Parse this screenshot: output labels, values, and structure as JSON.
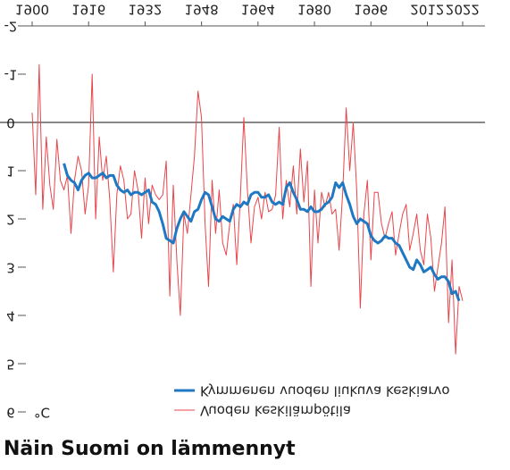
{
  "chart_data": {
    "type": "line",
    "title": "Näin Suomi on lämmennyt",
    "y_label": "°C",
    "x": [
      1900,
      1901,
      1902,
      1903,
      1904,
      1905,
      1906,
      1907,
      1908,
      1909,
      1910,
      1911,
      1912,
      1913,
      1914,
      1915,
      1916,
      1917,
      1918,
      1919,
      1920,
      1921,
      1922,
      1923,
      1924,
      1925,
      1926,
      1927,
      1928,
      1929,
      1930,
      1931,
      1932,
      1933,
      1934,
      1935,
      1936,
      1937,
      1938,
      1939,
      1940,
      1941,
      1942,
      1943,
      1944,
      1945,
      1946,
      1947,
      1948,
      1949,
      1950,
      1951,
      1952,
      1953,
      1954,
      1955,
      1956,
      1957,
      1958,
      1959,
      1960,
      1961,
      1962,
      1963,
      1964,
      1965,
      1966,
      1967,
      1968,
      1969,
      1970,
      1971,
      1972,
      1973,
      1974,
      1975,
      1976,
      1977,
      1978,
      1979,
      1980,
      1981,
      1982,
      1983,
      1984,
      1985,
      1986,
      1987,
      1988,
      1989,
      1990,
      1991,
      1992,
      1993,
      1994,
      1995,
      1996,
      1997,
      1998,
      1999,
      2000,
      2001,
      2002,
      2003,
      2004,
      2005,
      2006,
      2007,
      2008,
      2009,
      2010,
      2011,
      2012,
      2013,
      2014,
      2015,
      2016,
      2017,
      2018,
      2019,
      2020,
      2021,
      2022
    ],
    "series": [
      {
        "name": "Vuoden keskilämpötila",
        "color": "#e8454b",
        "width": 1,
        "values": [
          -0.2,
          1.5,
          -1.2,
          1.8,
          0.3,
          1.3,
          1.8,
          0.35,
          1.2,
          1.4,
          1.1,
          2.3,
          1.2,
          0.7,
          1,
          1.9,
          1.3,
          -1,
          2,
          0.3,
          1.2,
          0.7,
          1.6,
          3.1,
          1.5,
          0.9,
          1.2,
          2,
          1.9,
          1,
          1.4,
          2.4,
          1.15,
          2.1,
          1.3,
          1.5,
          1.6,
          1.5,
          0.8,
          3.6,
          1.3,
          2.85,
          4,
          1.9,
          2.3,
          1.5,
          0.7,
          -0.65,
          -0.1,
          2.1,
          3.4,
          1.2,
          2.3,
          1.4,
          2.5,
          2.75,
          2.1,
          1.7,
          2.95,
          1.55,
          -0.1,
          1.4,
          2.5,
          1.75,
          1.55,
          2,
          1.45,
          1.85,
          1.8,
          1.5,
          0.1,
          2,
          1.2,
          1.75,
          0.9,
          1.9,
          0.55,
          1.65,
          0.8,
          3.4,
          1.4,
          2.5,
          1.45,
          1.75,
          1.45,
          1.9,
          1.8,
          2.65,
          1.45,
          -0.3,
          1,
          0,
          1.45,
          3.85,
          1.9,
          1.2,
          2.85,
          1.45,
          1.45,
          2.1,
          2.4,
          2.1,
          1.85,
          2.75,
          2.3,
          1.9,
          1.7,
          2.65,
          2.3,
          1.9,
          2.65,
          2.95,
          1.9,
          2.4,
          3.5,
          3,
          2.5,
          1.75,
          4.15,
          2.85,
          4.8,
          3.4,
          3.7
        ]
      },
      {
        "name": "Kymmenen vuoden liukuva keskiarvo",
        "color": "#1f78c1",
        "width": 3,
        "values": [
          null,
          null,
          null,
          null,
          null,
          null,
          null,
          null,
          null,
          0.85,
          1.1,
          1.2,
          1.25,
          1.4,
          1.2,
          1.1,
          1.05,
          1.15,
          1.15,
          1.1,
          1.05,
          1.15,
          1.1,
          1.1,
          1.3,
          1.4,
          1.45,
          1.4,
          1.5,
          1.45,
          1.45,
          1.5,
          1.45,
          1.4,
          1.65,
          1.7,
          1.85,
          2.1,
          2.4,
          2.45,
          2.5,
          2.2,
          2.0,
          1.85,
          1.95,
          2.05,
          1.85,
          1.8,
          1.6,
          1.45,
          1.5,
          1.75,
          2.0,
          2.05,
          1.95,
          2.0,
          2.05,
          1.8,
          1.7,
          1.75,
          1.65,
          1.7,
          1.5,
          1.45,
          1.45,
          1.55,
          1.55,
          1.5,
          1.65,
          1.7,
          1.65,
          1.7,
          1.35,
          1.25,
          1.45,
          1.6,
          1.8,
          1.8,
          1.85,
          1.75,
          1.85,
          1.85,
          1.8,
          1.7,
          1.65,
          1.55,
          1.25,
          1.35,
          1.25,
          1.5,
          1.7,
          1.95,
          2.1,
          2.0,
          2.05,
          2.1,
          2.35,
          2.45,
          2.5,
          2.45,
          2.35,
          2.4,
          2.4,
          2.5,
          2.55,
          2.7,
          2.85,
          3.0,
          3.05,
          2.85,
          2.95,
          3.1,
          3.05,
          3.0,
          3.15,
          3.25,
          3.2,
          3.2,
          3.3,
          3.55,
          3.5,
          3.7,
          null
        ]
      }
    ],
    "xlim": [
      1900,
      2022
    ],
    "xticks": [
      1900,
      1916,
      1932,
      1948,
      1964,
      1980,
      1996,
      2012,
      2022
    ],
    "ylim": [
      -2,
      6
    ],
    "yticks": [
      -2,
      -1,
      0,
      1,
      2,
      3,
      4,
      5,
      6
    ],
    "zero_line": true,
    "legend": "upper right",
    "flipped_vertically": true
  }
}
